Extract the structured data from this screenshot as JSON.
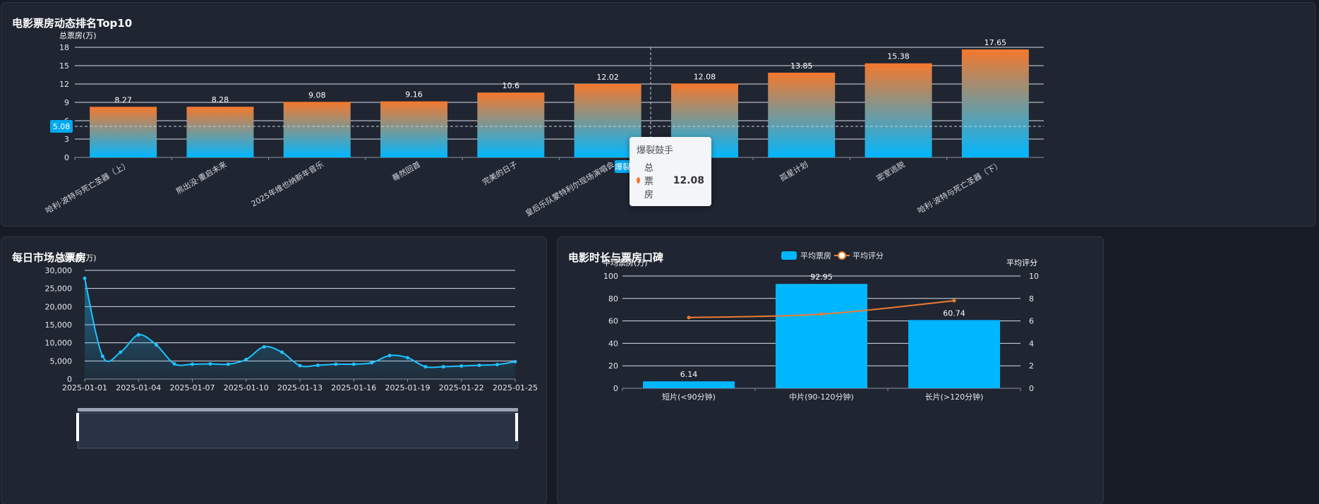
{
  "colors": {
    "bar_top": "#f4782c",
    "bar_bottom": "#00b7ff",
    "line": "#1fc2ff",
    "rating_line": "#f07a32",
    "accent_badge": "#00a8f0"
  },
  "ranking": {
    "title": "电影票房动态排名Top10",
    "y_axis_name": "总票房(万)",
    "y_ticks": [
      "0",
      "3",
      "6",
      "9",
      "12",
      "15",
      "18"
    ],
    "mark_line_value": "5.08",
    "tooltip": {
      "title": "爆裂鼓手",
      "series": "总票房",
      "value": "12.08",
      "axis_badge": "爆裂鼓手"
    }
  },
  "daily": {
    "title": "每日市场总票房",
    "y_axis_name": "总票房(万)",
    "y_ticks": [
      "0",
      "5,000",
      "10,000",
      "15,000",
      "20,000",
      "25,000",
      "30,000"
    ],
    "x_ticks": [
      "2025-01-01",
      "2025-01-04",
      "2025-01-07",
      "2025-01-10",
      "2025-01-13",
      "2025-01-16",
      "2025-01-19",
      "2025-01-22",
      "2025-01-25"
    ]
  },
  "duration": {
    "title": "电影时长与票房口碑",
    "legend_bar": "平均票房",
    "legend_line": "平均评分",
    "y_left_name": "平均票房(万)",
    "y_right_name": "平均评分",
    "y_left_ticks": [
      "0",
      "20",
      "40",
      "60",
      "80",
      "100"
    ],
    "y_right_ticks": [
      "0",
      "2",
      "4",
      "6",
      "8",
      "10"
    ]
  },
  "chart_data": [
    {
      "type": "bar",
      "title": "电影票房动态排名Top10",
      "ylabel": "总票房(万)",
      "ylim": [
        0,
        18
      ],
      "categories": [
        "哈利·波特与死亡圣器（上）",
        "熊出没·重启未来",
        "2025年维也纳新年音乐",
        "蓦然回首",
        "完美的日子",
        "皇后乐队蒙特利尔现场演唱会",
        "爆裂鼓手",
        "孤星计划",
        "密室逃脱",
        "哈利·波特与死亡圣器（下）"
      ],
      "series": [
        {
          "name": "总票房",
          "values": [
            8.27,
            8.28,
            9.08,
            9.16,
            10.6,
            12.02,
            12.08,
            13.85,
            15.38,
            17.65
          ]
        }
      ],
      "mark_line": 5.08,
      "grid": true
    },
    {
      "type": "area",
      "title": "每日市场总票房",
      "ylabel": "总票房(万)",
      "ylim": [
        0,
        30000
      ],
      "x": [
        "2025-01-01",
        "2025-01-02",
        "2025-01-03",
        "2025-01-04",
        "2025-01-05",
        "2025-01-06",
        "2025-01-07",
        "2025-01-08",
        "2025-01-09",
        "2025-01-10",
        "2025-01-11",
        "2025-01-12",
        "2025-01-13",
        "2025-01-14",
        "2025-01-15",
        "2025-01-16",
        "2025-01-17",
        "2025-01-18",
        "2025-01-19",
        "2025-01-20",
        "2025-01-21",
        "2025-01-22",
        "2025-01-23",
        "2025-01-24",
        "2025-01-25"
      ],
      "series": [
        {
          "name": "总票房",
          "values": [
            27800,
            6300,
            7400,
            12200,
            9400,
            4200,
            4100,
            4200,
            4100,
            5400,
            8900,
            7400,
            3700,
            3800,
            4100,
            4100,
            4500,
            6500,
            5900,
            3400,
            3400,
            3600,
            3800,
            4000,
            4800
          ]
        }
      ],
      "grid": true
    },
    {
      "type": "bar",
      "title": "电影时长与票房口碑",
      "categories": [
        "短片(<90分钟)",
        "中片(90-120分钟)",
        "长片(>120分钟)"
      ],
      "series": [
        {
          "name": "平均票房",
          "type": "bar",
          "axis": "left",
          "values": [
            6.14,
            92.95,
            60.74
          ]
        },
        {
          "name": "平均评分",
          "type": "line",
          "axis": "right",
          "values": [
            6.3,
            6.6,
            7.8
          ]
        }
      ],
      "ylabel": "平均票房(万)",
      "ylabel_right": "平均评分",
      "ylim": [
        0,
        100
      ],
      "ylim_right": [
        0,
        10
      ],
      "legend": "top-center",
      "grid": true
    }
  ]
}
